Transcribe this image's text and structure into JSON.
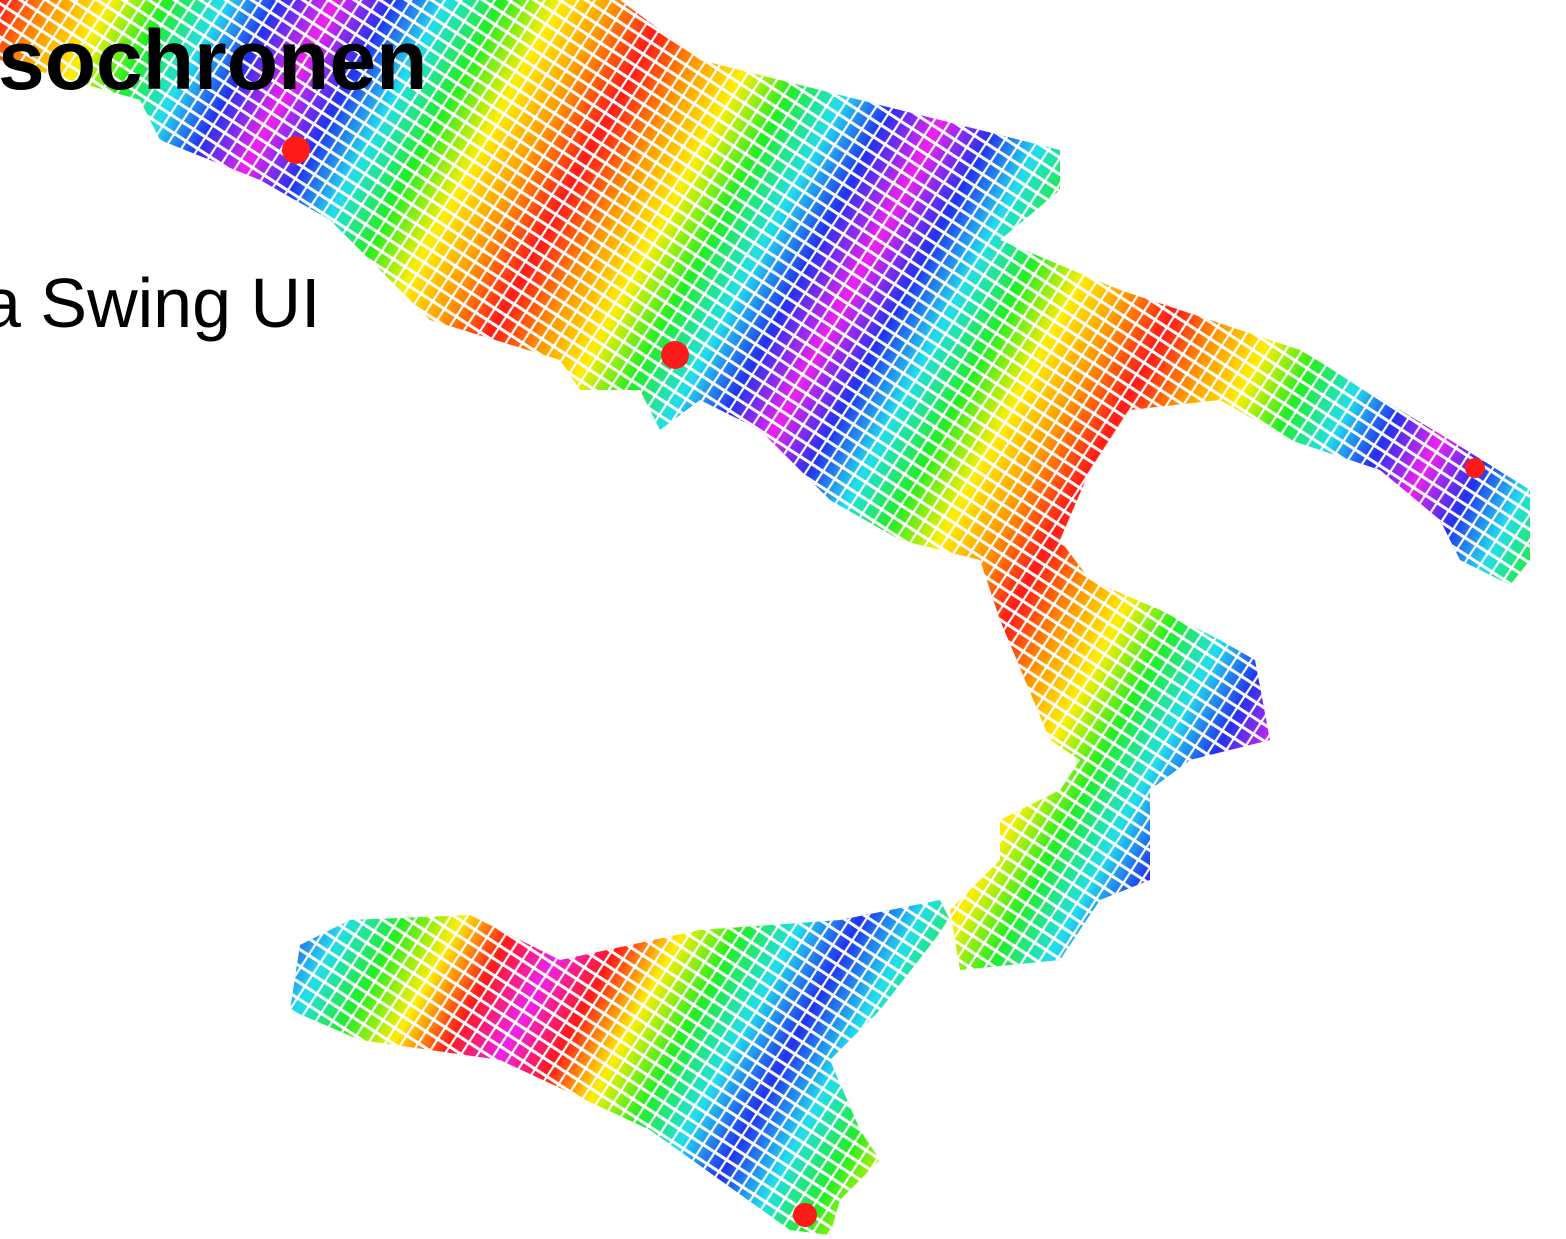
{
  "slide": {
    "title": "sochronen",
    "subtitle": "a Swing UI"
  }
}
